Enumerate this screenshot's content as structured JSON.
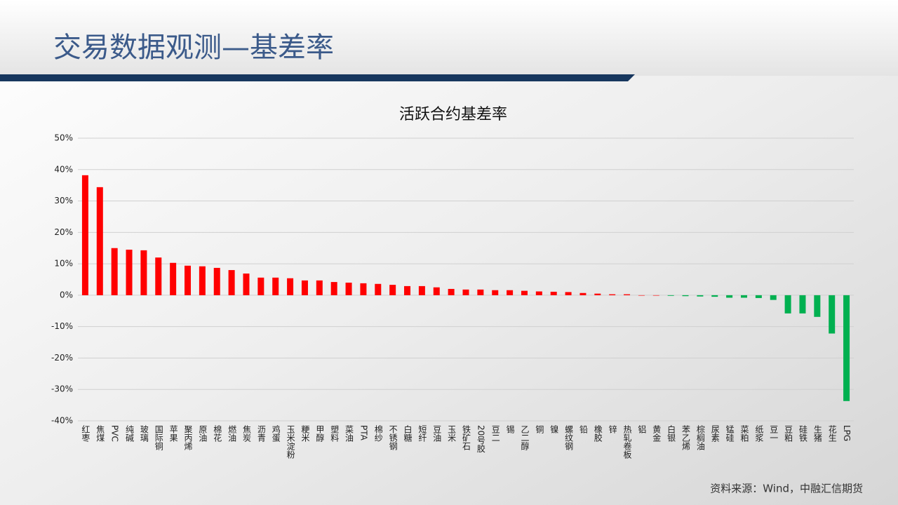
{
  "header": {
    "title": "交易数据观测—基差率"
  },
  "chart_data": {
    "type": "bar",
    "title": "活跃合约基差率",
    "categories": [
      "红枣",
      "焦煤",
      "PVC",
      "纯碱",
      "玻璃",
      "国际铜",
      "苹果",
      "聚丙烯",
      "原油",
      "棉花",
      "燃油",
      "焦炭",
      "沥青",
      "鸡蛋",
      "玉米淀粉",
      "粳米",
      "甲醇",
      "塑料",
      "菜油",
      "PTA",
      "棉纱",
      "不锈钢",
      "白糖",
      "短纤",
      "豆油",
      "玉米",
      "铁矿石",
      "20号胶",
      "豆二",
      "锡",
      "乙二醇",
      "铜",
      "镍",
      "螺纹钢",
      "铅",
      "橡胶",
      "锌",
      "热轧卷板",
      "铝",
      "黄金",
      "白银",
      "苯乙烯",
      "棕榈油",
      "尿素",
      "锰硅",
      "菜粕",
      "纸浆",
      "豆一",
      "豆粕",
      "硅铁",
      "生猪",
      "花生",
      "LPG"
    ],
    "values": [
      38.2,
      34.4,
      15,
      14.5,
      14.3,
      12,
      10.3,
      9.4,
      9.2,
      8.7,
      8,
      6.9,
      5.6,
      5.6,
      5.4,
      4.7,
      4.7,
      4.2,
      4,
      3.8,
      3.6,
      3.3,
      2.9,
      2.9,
      2.5,
      2,
      1.8,
      1.8,
      1.6,
      1.6,
      1.4,
      1.2,
      1.1,
      1,
      0.7,
      0.5,
      0.3,
      0.3,
      0,
      0,
      -0.2,
      -0.3,
      -0.4,
      -0.5,
      -0.8,
      -0.8,
      -0.9,
      -1.5,
      -5.8,
      -5.8,
      -6.9,
      -12.2,
      -33.7
    ],
    "positive_color": "#ff0000",
    "negative_color": "#00b050",
    "ylim": [
      -40,
      50
    ],
    "yticks": [
      {
        "value": -40,
        "label": "-40%"
      },
      {
        "value": -30,
        "label": "-30%"
      },
      {
        "value": -20,
        "label": "-20%"
      },
      {
        "value": -10,
        "label": "-10%"
      },
      {
        "value": 0,
        "label": "0%"
      },
      {
        "value": 10,
        "label": "10%"
      },
      {
        "value": 20,
        "label": "20%"
      },
      {
        "value": 30,
        "label": "30%"
      },
      {
        "value": 40,
        "label": "40%"
      },
      {
        "value": 50,
        "label": "50%"
      }
    ],
    "grid": true
  },
  "source": "资料来源：Wind，中融汇信期货"
}
